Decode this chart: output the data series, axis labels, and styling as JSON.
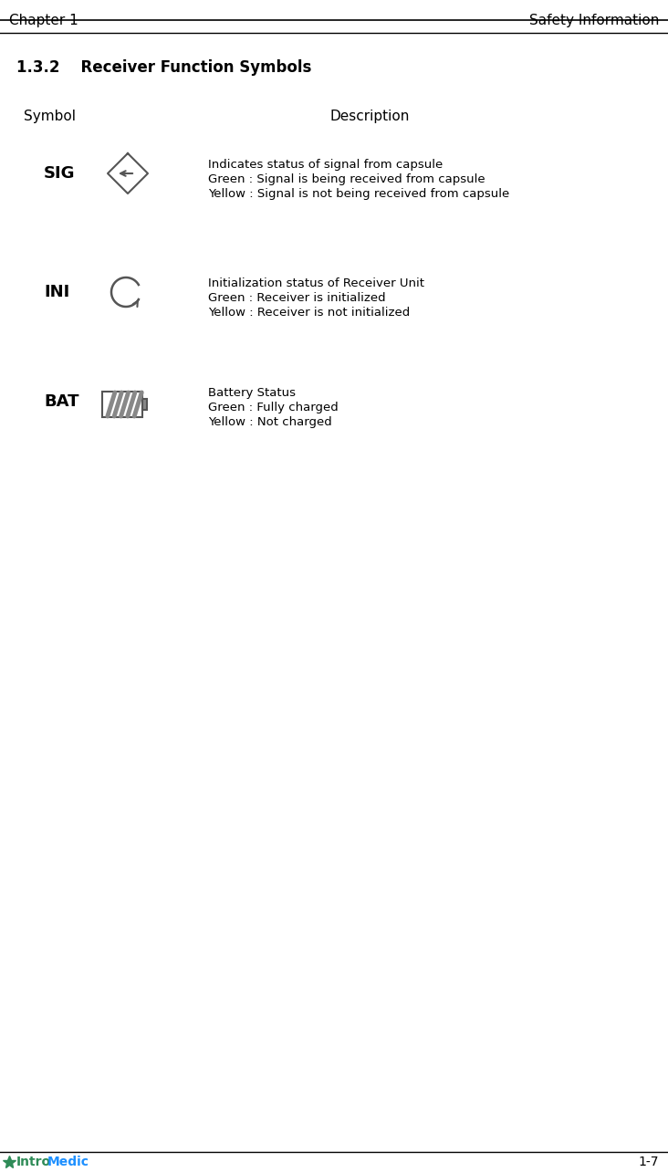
{
  "header_left": "Chapter 1",
  "header_right": "Safety Information",
  "section_title": "1.3.2    Receiver Function Symbols",
  "col_symbol": "Symbol",
  "col_description": "Description",
  "rows": [
    {
      "symbol_text": "SIG",
      "description_lines": [
        "Indicates status of signal from capsule",
        "Green : Signal is being received from capsule",
        "Yellow : Signal is not being received from capsule"
      ]
    },
    {
      "symbol_text": "INI",
      "description_lines": [
        "Initialization status of Receiver Unit",
        "Green : Receiver is initialized",
        "Yellow : Receiver is not initialized"
      ]
    },
    {
      "symbol_text": "BAT",
      "description_lines": [
        "Battery Status",
        "Green : Fully charged",
        "Yellow : Not charged"
      ]
    }
  ],
  "footer_left_intro": "Intro",
  "footer_left_medic": "Medic",
  "footer_right": "1-7",
  "bg_color": "#ffffff",
  "text_color": "#000000",
  "header_line_color": "#000000",
  "footer_line_color": "#000000",
  "intro_color": "#2e8b57",
  "medic_color": "#1e90ff",
  "symbol_bold_size": 13,
  "desc_font_size": 9.5,
  "header_font_size": 11,
  "section_font_size": 12
}
